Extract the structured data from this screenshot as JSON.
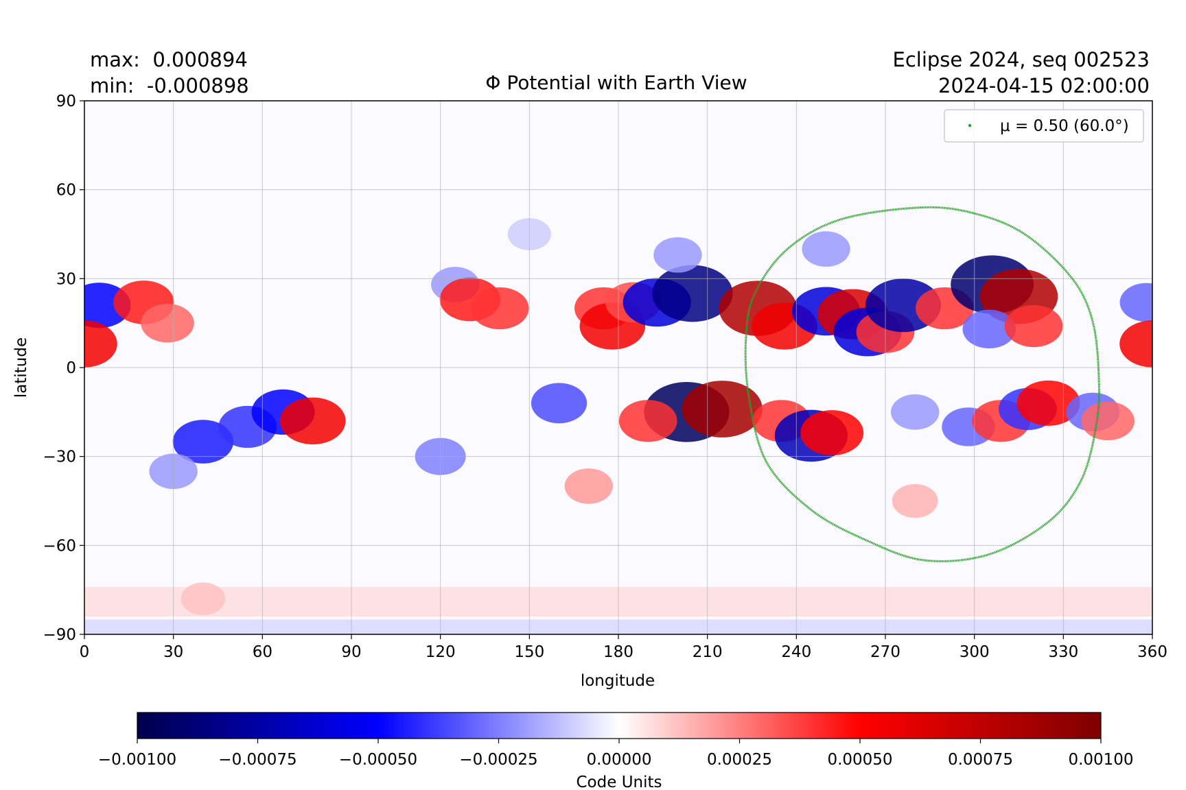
{
  "chart_data": {
    "type": "heatmap",
    "title": "Φ Potential with Earth View",
    "stats": {
      "max_label": "max:",
      "max_value": "0.000894",
      "min_label": "min:",
      "min_value": "-0.000898"
    },
    "run_info": {
      "line1": "Eclipse 2024, seq 002523",
      "line2": "2024-04-15 02:00:00"
    },
    "xlabel": "longitude",
    "ylabel": "latitude",
    "xlim": [
      0,
      360
    ],
    "ylim": [
      -90,
      90
    ],
    "xticks": [
      0,
      30,
      60,
      90,
      120,
      150,
      180,
      210,
      240,
      270,
      300,
      330,
      360
    ],
    "yticks": [
      90,
      60,
      30,
      0,
      -30,
      -60,
      -90
    ],
    "ytick_labels": [
      "90",
      "60",
      "30",
      "0",
      "−30",
      "−60",
      "−90"
    ],
    "grid": true,
    "legend": {
      "position": "top-right",
      "label": "μ = 0.50 (60.0°)",
      "color": "#2ca02c"
    },
    "colorbar": {
      "label": "Code Units",
      "range": [
        -0.001,
        0.001
      ],
      "ticks": [
        -0.001,
        -0.00075,
        -0.0005,
        -0.00025,
        0,
        0.00025,
        0.0005,
        0.00075,
        0.001
      ],
      "tick_labels": [
        "−0.00100",
        "−0.00075",
        "−0.00050",
        "−0.00025",
        "0.00000",
        "0.00025",
        "0.00050",
        "0.00075",
        "0.00100"
      ],
      "colormap": "seismic",
      "colors": [
        "#00004c",
        "#0000ff",
        "#ffffff",
        "#ff0000",
        "#7f0000"
      ]
    },
    "blobs": [
      {
        "lon": 5,
        "lat": 21,
        "value": -0.0005
      },
      {
        "lon": 20,
        "lat": 22,
        "value": 0.00045
      },
      {
        "lon": 28,
        "lat": 15,
        "value": 0.0003
      },
      {
        "lon": 0,
        "lat": 8,
        "value": 0.00055
      },
      {
        "lon": 40,
        "lat": -25,
        "value": -0.00045
      },
      {
        "lon": 55,
        "lat": -20,
        "value": -0.0004
      },
      {
        "lon": 67,
        "lat": -15,
        "value": -0.0005
      },
      {
        "lon": 77,
        "lat": -18,
        "value": 0.00055
      },
      {
        "lon": 30,
        "lat": -35,
        "value": -0.0002
      },
      {
        "lon": 125,
        "lat": 28,
        "value": -0.0002
      },
      {
        "lon": 130,
        "lat": 23,
        "value": 0.00045
      },
      {
        "lon": 140,
        "lat": 20,
        "value": 0.0004
      },
      {
        "lon": 120,
        "lat": -30,
        "value": -0.00025
      },
      {
        "lon": 160,
        "lat": -12,
        "value": -0.00035
      },
      {
        "lon": 175,
        "lat": 20,
        "value": 0.0004
      },
      {
        "lon": 178,
        "lat": 14,
        "value": 0.00055
      },
      {
        "lon": 185,
        "lat": 22,
        "value": 0.00035
      },
      {
        "lon": 193,
        "lat": 22,
        "value": -0.0006
      },
      {
        "lon": 205,
        "lat": 25,
        "value": -0.00085
      },
      {
        "lon": 203,
        "lat": -15,
        "value": -0.00095
      },
      {
        "lon": 215,
        "lat": -14,
        "value": 0.00085
      },
      {
        "lon": 190,
        "lat": -18,
        "value": 0.0004
      },
      {
        "lon": 200,
        "lat": 38,
        "value": -0.0002
      },
      {
        "lon": 227,
        "lat": 20,
        "value": 0.0008
      },
      {
        "lon": 236,
        "lat": 14,
        "value": 0.00055
      },
      {
        "lon": 250,
        "lat": 19,
        "value": -0.0006
      },
      {
        "lon": 259,
        "lat": 18,
        "value": 0.00065
      },
      {
        "lon": 264,
        "lat": 12,
        "value": -0.0006
      },
      {
        "lon": 270,
        "lat": 12,
        "value": 0.0004
      },
      {
        "lon": 276,
        "lat": 21,
        "value": -0.00075
      },
      {
        "lon": 290,
        "lat": 20,
        "value": 0.0004
      },
      {
        "lon": 235,
        "lat": -18,
        "value": 0.0004
      },
      {
        "lon": 245,
        "lat": -23,
        "value": -0.0007
      },
      {
        "lon": 252,
        "lat": -22,
        "value": 0.0005
      },
      {
        "lon": 280,
        "lat": -15,
        "value": -0.0002
      },
      {
        "lon": 298,
        "lat": -20,
        "value": -0.0003
      },
      {
        "lon": 306,
        "lat": 28,
        "value": -0.0009
      },
      {
        "lon": 315,
        "lat": 24,
        "value": 0.0008
      },
      {
        "lon": 305,
        "lat": 13,
        "value": -0.0003
      },
      {
        "lon": 320,
        "lat": 14,
        "value": 0.0004
      },
      {
        "lon": 309,
        "lat": -18,
        "value": 0.0004
      },
      {
        "lon": 318,
        "lat": -14,
        "value": -0.0004
      },
      {
        "lon": 325,
        "lat": -12,
        "value": 0.0005
      },
      {
        "lon": 340,
        "lat": -15,
        "value": -0.0003
      },
      {
        "lon": 345,
        "lat": -18,
        "value": 0.0003
      },
      {
        "lon": 358,
        "lat": 22,
        "value": -0.0003
      },
      {
        "lon": 360,
        "lat": 8,
        "value": 0.00055
      },
      {
        "lon": 170,
        "lat": -40,
        "value": 0.0002
      },
      {
        "lon": 280,
        "lat": -45,
        "value": 0.00015
      },
      {
        "lon": 40,
        "lat": -78,
        "value": 0.00012
      },
      {
        "lon": 150,
        "lat": 45,
        "value": -0.0001
      },
      {
        "lon": 250,
        "lat": 40,
        "value": -0.0002
      }
    ],
    "earth_view_contour": {
      "name": "μ = 0.50 (60.0°)",
      "lon": [
        282,
        255,
        237,
        226,
        223,
        224,
        230,
        245,
        263,
        283,
        305,
        325,
        336,
        341,
        342,
        340,
        333,
        317,
        300,
        282
      ],
      "lat": [
        54,
        50,
        40,
        25,
        10,
        -10,
        -32,
        -48,
        -58,
        -65,
        -63,
        -52,
        -38,
        -20,
        -5,
        15,
        30,
        45,
        52,
        54
      ]
    }
  }
}
